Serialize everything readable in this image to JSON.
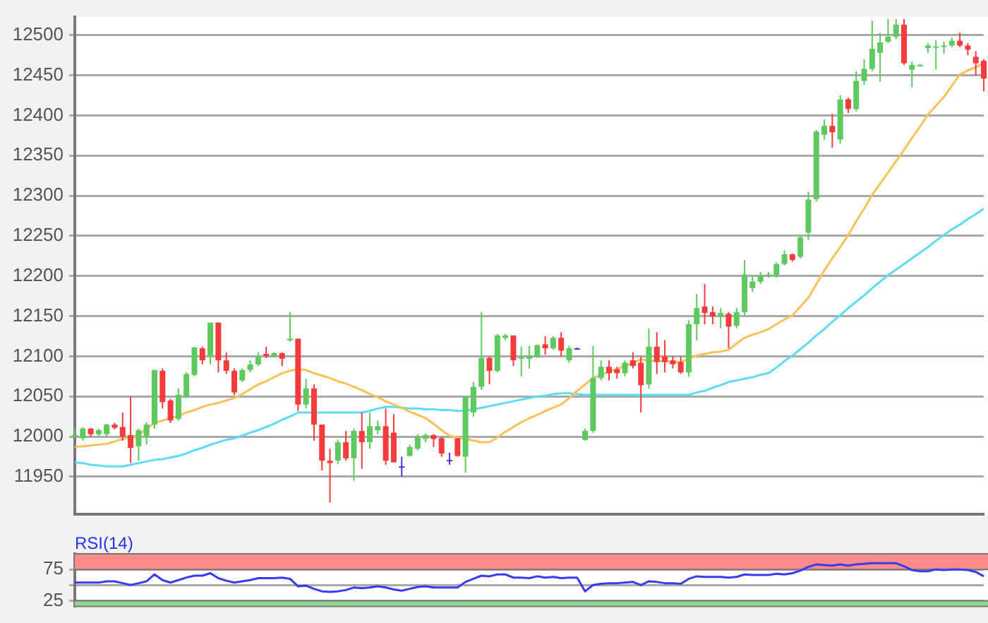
{
  "chart_data": [
    {
      "type": "candlestick",
      "categories": [
        null,
        null,
        null,
        null,
        null,
        null,
        null,
        null,
        null,
        null,
        null,
        null,
        null,
        null,
        null,
        null,
        null,
        null,
        null,
        null,
        null,
        null,
        null,
        null,
        null,
        null,
        null,
        null,
        null,
        null,
        null,
        null,
        null,
        null,
        null,
        null,
        null,
        null,
        null,
        null,
        null,
        null,
        null,
        null,
        null,
        null,
        null,
        null,
        null,
        null,
        null,
        null,
        null,
        null,
        null,
        null,
        null,
        null,
        null,
        null,
        null,
        null,
        null,
        null,
        null,
        null,
        null,
        null,
        null,
        null,
        null,
        null,
        null,
        null,
        null,
        null,
        null,
        null,
        null,
        null,
        null,
        null,
        null,
        null,
        null,
        null,
        null,
        null,
        null,
        null,
        null,
        null,
        null,
        null,
        null,
        null,
        null,
        null,
        null,
        null,
        null,
        null,
        null,
        null,
        null,
        null,
        null,
        null,
        null,
        null,
        null,
        null,
        null,
        null,
        null
      ],
      "ohlc": [
        [
          12000,
          12010,
          11998,
          12002
        ],
        [
          11998,
          12012,
          11995,
          12010
        ],
        [
          12010,
          12011,
          12000,
          12003
        ],
        [
          12003,
          12010,
          12000,
          12008
        ],
        [
          12003,
          12016,
          12000,
          12015
        ],
        [
          12015,
          12017,
          12009,
          12011
        ],
        [
          12012,
          12030,
          11995,
          12000
        ],
        [
          12002,
          12050,
          11967,
          11986
        ],
        [
          11988,
          12010,
          11970,
          12008
        ],
        [
          12000,
          12018,
          11990,
          12015
        ],
        [
          12015,
          12083,
          12010,
          12083
        ],
        [
          12082,
          12085,
          12035,
          12043
        ],
        [
          12045,
          12047,
          12017,
          12020
        ],
        [
          12022,
          12060,
          12020,
          12052
        ],
        [
          12050,
          12080,
          12048,
          12078
        ],
        [
          12077,
          12112,
          12075,
          12111
        ],
        [
          12110,
          12112,
          12090,
          12095
        ],
        [
          12100,
          12142,
          12090,
          12142
        ],
        [
          12142,
          12142,
          12080,
          12095
        ],
        [
          12095,
          12105,
          12078,
          12082
        ],
        [
          12082,
          12085,
          12052,
          12055
        ],
        [
          12070,
          12085,
          12068,
          12083
        ],
        [
          12083,
          12095,
          12080,
          12090
        ],
        [
          12090,
          12105,
          12088,
          12100
        ],
        [
          12103,
          12112,
          12098,
          12100
        ],
        [
          12100,
          12105,
          12099,
          12104
        ],
        [
          12104,
          12105,
          12088,
          12097
        ],
        [
          12120,
          12155,
          12118,
          12122
        ],
        [
          12122,
          12122,
          12032,
          12040
        ],
        [
          12040,
          12072,
          12035,
          12060
        ],
        [
          12060,
          12065,
          11995,
          12015
        ],
        [
          12015,
          12015,
          11958,
          11970
        ],
        [
          11970,
          11985,
          11918,
          11967
        ],
        [
          11970,
          11996,
          11966,
          11993
        ],
        [
          11993,
          12007,
          11970,
          11973
        ],
        [
          11973,
          12010,
          11945,
          12007
        ],
        [
          12007,
          12030,
          11960,
          11993
        ],
        [
          11993,
          12030,
          11985,
          12013
        ],
        [
          12008,
          12020,
          12003,
          12013
        ],
        [
          12013,
          12035,
          11965,
          11970
        ],
        [
          12005,
          12028,
          11968,
          11968
        ],
        [
          11963,
          11975,
          11950,
          11963
        ],
        [
          11976,
          11990,
          11975,
          11987
        ],
        [
          11985,
          12003,
          11983,
          12000
        ],
        [
          11997,
          12004,
          11993,
          12002
        ],
        [
          12002,
          12003,
          11987,
          11997
        ],
        [
          11998,
          12000,
          11975,
          11979
        ],
        [
          11971,
          11980,
          11965,
          11971
        ],
        [
          11998,
          11998,
          11975,
          11976
        ],
        [
          11975,
          12050,
          11955,
          12050
        ],
        [
          12030,
          12068,
          12025,
          12062
        ],
        [
          12062,
          12155,
          12058,
          12098
        ],
        [
          12098,
          12100,
          12065,
          12082
        ],
        [
          12082,
          12128,
          12080,
          12126
        ],
        [
          12123,
          12128,
          12120,
          12126
        ],
        [
          12126,
          12126,
          12088,
          12095
        ],
        [
          12097,
          12112,
          12075,
          12099
        ],
        [
          12097,
          12113,
          12085,
          12101
        ],
        [
          12100,
          12115,
          12098,
          12114
        ],
        [
          12115,
          12125,
          12102,
          12110
        ],
        [
          12110,
          12125,
          12108,
          12123
        ],
        [
          12123,
          12130,
          12100,
          12107
        ],
        [
          12095,
          12113,
          12092,
          12110
        ],
        [
          12110,
          12111,
          12109,
          12110
        ],
        [
          11996,
          12010,
          11995,
          12007
        ],
        [
          12007,
          12113,
          12005,
          12073
        ],
        [
          12073,
          12095,
          12070,
          12087
        ],
        [
          12087,
          12095,
          12070,
          12079
        ],
        [
          12084,
          12087,
          12072,
          12079
        ],
        [
          12079,
          12095,
          12075,
          12092
        ],
        [
          12095,
          12105,
          12085,
          12088
        ],
        [
          12092,
          12100,
          12030,
          12064
        ],
        [
          12065,
          12135,
          12060,
          12112
        ],
        [
          12112,
          12130,
          12078,
          12093
        ],
        [
          12100,
          12120,
          12080,
          12093
        ],
        [
          12095,
          12100,
          12085,
          12090
        ],
        [
          12093,
          12100,
          12078,
          12080
        ],
        [
          12080,
          12145,
          12075,
          12140
        ],
        [
          12140,
          12178,
          12120,
          12160
        ],
        [
          12162,
          12190,
          12140,
          12154
        ],
        [
          12155,
          12162,
          12140,
          12150
        ],
        [
          12150,
          12160,
          12135,
          12154
        ],
        [
          12153,
          12155,
          12110,
          12137
        ],
        [
          12138,
          12160,
          12135,
          12155
        ],
        [
          12155,
          12220,
          12150,
          12202
        ],
        [
          12185,
          12200,
          12180,
          12193
        ],
        [
          12193,
          12205,
          12190,
          12201
        ],
        [
          12200,
          12205,
          12198,
          12202
        ],
        [
          12201,
          12217,
          12198,
          12215
        ],
        [
          12215,
          12232,
          12213,
          12227
        ],
        [
          12227,
          12228,
          12218,
          12220
        ],
        [
          12224,
          12250,
          12222,
          12248
        ],
        [
          12254,
          12305,
          12245,
          12295
        ],
        [
          12296,
          12382,
          12293,
          12380
        ],
        [
          12376,
          12395,
          12370,
          12387
        ],
        [
          12387,
          12402,
          12360,
          12379
        ],
        [
          12370,
          12425,
          12365,
          12420
        ],
        [
          12420,
          12422,
          12403,
          12408
        ],
        [
          12408,
          12455,
          12405,
          12443
        ],
        [
          12443,
          12470,
          12438,
          12458
        ],
        [
          12458,
          12518,
          12455,
          12483
        ],
        [
          12478,
          12503,
          12442,
          12491
        ],
        [
          12492,
          12520,
          12490,
          12498
        ],
        [
          12498,
          12520,
          12495,
          12513
        ],
        [
          12513,
          12520,
          12463,
          12465
        ],
        [
          12457,
          12467,
          12435,
          12463
        ],
        [
          12462,
          12464,
          12461,
          12463
        ],
        [
          12484,
          12490,
          12478,
          12487
        ],
        [
          12485,
          12494,
          12457,
          12486
        ],
        [
          12486,
          12492,
          12477,
          12487
        ],
        [
          12487,
          12497,
          12485,
          12493
        ],
        [
          12493,
          12503,
          12485,
          12487
        ],
        [
          12487,
          12490,
          12475,
          12482
        ],
        [
          12473,
          12480,
          12450,
          12465
        ],
        [
          12468,
          12470,
          12430,
          12446
        ]
      ],
      "colors": [
        "#5ec95e",
        "#5ec95e",
        "#f53b3b",
        "#5ec95e",
        "#5ec95e",
        "#f53b3b",
        "#f53b3b",
        "#f53b3b",
        "#5ec95e",
        "#5ec95e",
        "#5ec95e",
        "#f53b3b",
        "#f53b3b",
        "#5ec95e",
        "#5ec95e",
        "#5ec95e",
        "#f53b3b",
        "#5ec95e",
        "#f53b3b",
        "#f53b3b",
        "#f53b3b",
        "#5ec95e",
        "#5ec95e",
        "#5ec95e",
        "#f53b3b",
        "#5ec95e",
        "#f53b3b",
        "#5ec95e",
        "#f53b3b",
        "#5ec95e",
        "#f53b3b",
        "#f53b3b",
        "#f53b3b",
        "#5ec95e",
        "#f53b3b",
        "#5ec95e",
        "#f53b3b",
        "#5ec95e",
        "#5ec95e",
        "#f53b3b",
        "#f53b3b",
        "#5533dd",
        "#5ec95e",
        "#5ec95e",
        "#5ec95e",
        "#f53b3b",
        "#f53b3b",
        "#5533dd",
        "#f53b3b",
        "#5ec95e",
        "#5ec95e",
        "#5ec95e",
        "#f53b3b",
        "#5ec95e",
        "#5ec95e",
        "#f53b3b",
        "#5ec95e",
        "#5ec95e",
        "#5ec95e",
        "#f53b3b",
        "#5ec95e",
        "#f53b3b",
        "#5ec95e",
        "#5533dd",
        "#5ec95e",
        "#5ec95e",
        "#5ec95e",
        "#f53b3b",
        "#f53b3b",
        "#5ec95e",
        "#f53b3b",
        "#f53b3b",
        "#5ec95e",
        "#f53b3b",
        "#f53b3b",
        "#f53b3b",
        "#f53b3b",
        "#5ec95e",
        "#5ec95e",
        "#f53b3b",
        "#f53b3b",
        "#5ec95e",
        "#f53b3b",
        "#5ec95e",
        "#5ec95e",
        "#5ec95e",
        "#5ec95e",
        "#5ec95e",
        "#5ec95e",
        "#5ec95e",
        "#f53b3b",
        "#5ec95e",
        "#5ec95e",
        "#5ec95e",
        "#5ec95e",
        "#f53b3b",
        "#5ec95e",
        "#f53b3b",
        "#5ec95e",
        "#5ec95e",
        "#5ec95e",
        "#5ec95e",
        "#5ec95e",
        "#5ec95e",
        "#f53b3b",
        "#5ec95e",
        "#5ec95e",
        "#5ec95e",
        "#5ec95e",
        "#5ec95e",
        "#5ec95e",
        "#f53b3b",
        "#f53b3b",
        "#f53b3b",
        "#f53b3b"
      ],
      "series": [
        {
          "type": "line",
          "color": "#fbc25a",
          "values": [
            11987,
            11988,
            11989,
            11990,
            11991,
            11994,
            11997,
            11999,
            12002,
            12010,
            12017,
            12020,
            12023,
            12026,
            12030,
            12033,
            12037,
            12040,
            12042,
            12045,
            12048,
            12053,
            12059,
            12065,
            12069,
            12074,
            12079,
            12082,
            12084,
            12083,
            12079,
            12076,
            12073,
            12069,
            12066,
            12062,
            12058,
            12053,
            12049,
            12044,
            12040,
            12036,
            12031,
            12027,
            12023,
            12016,
            12008,
            12001,
            11999,
            11997,
            11995,
            11993,
            11993,
            11999,
            12006,
            12012,
            12018,
            12023,
            12027,
            12032,
            12036,
            12040,
            12048,
            12057,
            12065,
            12073,
            12077,
            12081,
            12084,
            12088,
            12092,
            12096,
            12095,
            12094,
            12094,
            12093,
            12093,
            12097,
            12101,
            12103,
            12105,
            12106,
            12108,
            12116,
            12123,
            12127,
            12130,
            12134,
            12140,
            12146,
            12151,
            12162,
            12173,
            12190,
            12207,
            12222,
            12236,
            12251,
            12268,
            12284,
            12301,
            12315,
            12329,
            12343,
            12357,
            12372,
            12386,
            12401,
            12412,
            12423,
            12437,
            12451,
            12456,
            12460,
            12465
          ]
        },
        {
          "type": "line",
          "color": "#5fdcf5",
          "values": [
            11968,
            11967,
            11965,
            11964,
            11963,
            11963,
            11963,
            11965,
            11967,
            11969,
            11971,
            11972,
            11974,
            11976,
            11979,
            11983,
            11986,
            11990,
            11993,
            11996,
            11998,
            12001,
            12005,
            12008,
            12012,
            12016,
            12021,
            12025,
            12030,
            12030,
            12030,
            12030,
            12030,
            12030,
            12030,
            12030,
            12030,
            12032,
            12035,
            12037,
            12037,
            12036,
            12035,
            12035,
            12034,
            12034,
            12033,
            12033,
            12032,
            12032,
            12034,
            12036,
            12038,
            12040,
            12042,
            12044,
            12046,
            12048,
            12050,
            12051,
            12053,
            12054,
            12054,
            12053,
            12052,
            12052,
            12052,
            12052,
            12052,
            12052,
            12052,
            12052,
            12052,
            12052,
            12052,
            12052,
            12052,
            12052,
            12055,
            12057,
            12061,
            12064,
            12068,
            12070,
            12072,
            12074,
            12077,
            12079,
            12086,
            12094,
            12101,
            12109,
            12117,
            12126,
            12134,
            12143,
            12151,
            12160,
            12168,
            12176,
            12185,
            12193,
            12201,
            12208,
            12215,
            12222,
            12229,
            12236,
            12244,
            12251,
            12258,
            12264,
            12271,
            12277,
            12284
          ]
        }
      ],
      "ylim": [
        11903,
        12523
      ],
      "yticks": [
        11950,
        12000,
        12050,
        12100,
        12150,
        12200,
        12250,
        12300,
        12350,
        12400,
        12450,
        12500
      ],
      "grid": "y",
      "tick_labels": "y"
    },
    {
      "type": "line",
      "title": "RSI(14)",
      "categories": [
        null,
        null,
        null,
        null,
        null,
        null,
        null,
        null,
        null,
        null,
        null,
        null,
        null,
        null,
        null,
        null,
        null,
        null,
        null,
        null,
        null,
        null,
        null,
        null,
        null,
        null,
        null,
        null,
        null,
        null,
        null,
        null,
        null,
        null,
        null,
        null,
        null,
        null,
        null,
        null,
        null,
        null,
        null,
        null,
        null,
        null,
        null,
        null,
        null,
        null,
        null,
        null,
        null,
        null,
        null,
        null,
        null,
        null,
        null,
        null,
        null,
        null,
        null,
        null,
        null,
        null,
        null,
        null,
        null,
        null,
        null,
        null,
        null,
        null,
        null,
        null,
        null,
        null,
        null,
        null,
        null,
        null,
        null,
        null,
        null,
        null,
        null,
        null,
        null,
        null,
        null,
        null,
        null,
        null,
        null,
        null,
        null,
        null,
        null,
        null,
        null,
        null,
        null,
        null,
        null,
        null,
        null,
        null,
        null,
        null,
        null,
        null,
        null,
        null,
        null
      ],
      "series": [
        {
          "color": "#3a3af0",
          "values": [
            54,
            54,
            54,
            54,
            56,
            56,
            53,
            50,
            53,
            56,
            67,
            58,
            54,
            58,
            62,
            65,
            65,
            69,
            61,
            57,
            54,
            56,
            58,
            61,
            61,
            61,
            62,
            60,
            48,
            49,
            44,
            40,
            39,
            40,
            42,
            46,
            45,
            46,
            48,
            46,
            43,
            41,
            44,
            47,
            48,
            46,
            46,
            46,
            46,
            55,
            60,
            65,
            64,
            67,
            67,
            62,
            62,
            61,
            64,
            62,
            63,
            61,
            62,
            62,
            40,
            50,
            52,
            53,
            53,
            54,
            55,
            50,
            56,
            55,
            53,
            53,
            52,
            60,
            64,
            63,
            63,
            63,
            62,
            63,
            67,
            66,
            66,
            66,
            68,
            67,
            69,
            73,
            79,
            83,
            82,
            81,
            83,
            81,
            83,
            84,
            85,
            85,
            85,
            85,
            80,
            74,
            72,
            72,
            75,
            74,
            75,
            75,
            74,
            71,
            64
          ]
        }
      ],
      "ylim": [
        16,
        100
      ],
      "yticks": [
        25,
        {
          "value": 50,
          "label": null
        },
        75
      ],
      "bands": [
        {
          "axis": "y",
          "from": 75,
          "to": 100,
          "color": "#ff8a8a"
        },
        {
          "axis": "y",
          "from": 16,
          "to": 25,
          "color": "#8fd88f"
        }
      ],
      "grid": "y",
      "tick_labels": "y"
    }
  ]
}
